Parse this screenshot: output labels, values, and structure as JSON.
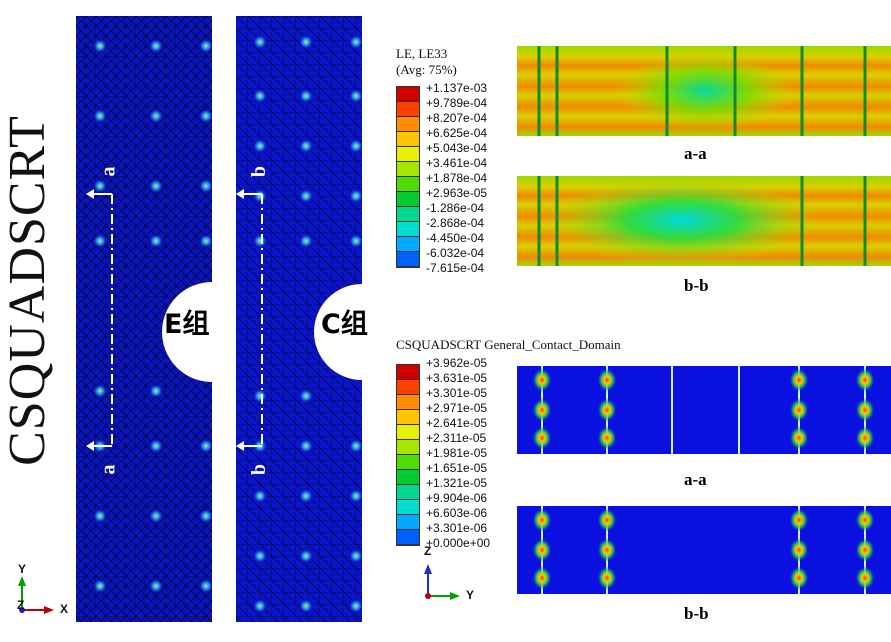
{
  "side_title": "CSQUADSCRT",
  "models": [
    {
      "group_label": "E组",
      "cut_top": "a",
      "cut_bottom": "a"
    },
    {
      "group_label": "C组",
      "cut_top": "b",
      "cut_bottom": "b"
    }
  ],
  "legend_strain": {
    "title_line1": "LE, LE33",
    "title_line2": "(Avg: 75%)",
    "values": [
      "+1.137e-03",
      "+9.789e-04",
      "+8.207e-04",
      "+6.625e-04",
      "+5.043e-04",
      "+3.461e-04",
      "+1.878e-04",
      "+2.963e-05",
      "-1.286e-04",
      "-2.868e-04",
      "-4.450e-04",
      "-6.032e-04",
      "-7.615e-04"
    ]
  },
  "legend_contact": {
    "title": "CSQUADSCRT General_Contact_Domain",
    "values": [
      "+3.962e-05",
      "+3.631e-05",
      "+3.301e-05",
      "+2.971e-05",
      "+2.641e-05",
      "+2.311e-05",
      "+1.981e-05",
      "+1.651e-05",
      "+1.321e-05",
      "+9.904e-06",
      "+6.603e-06",
      "+3.301e-06",
      "+0.000e+00"
    ]
  },
  "legend_colors": [
    "#d00000",
    "#ff4000",
    "#ff8c00",
    "#ffc400",
    "#e6f000",
    "#a6e600",
    "#4fdc00",
    "#00cc33",
    "#00d98f",
    "#00dccd",
    "#00a8ff",
    "#0060ff",
    "#0010dd"
  ],
  "section_labels": {
    "strain_a": "a-a",
    "strain_b": "b-b",
    "contact_a": "a-a",
    "contact_b": "b-b"
  },
  "triad_left": {
    "y": "Y",
    "z": "Z",
    "x": "X"
  },
  "triad_right": {
    "z": "Z",
    "y": "Y"
  }
}
